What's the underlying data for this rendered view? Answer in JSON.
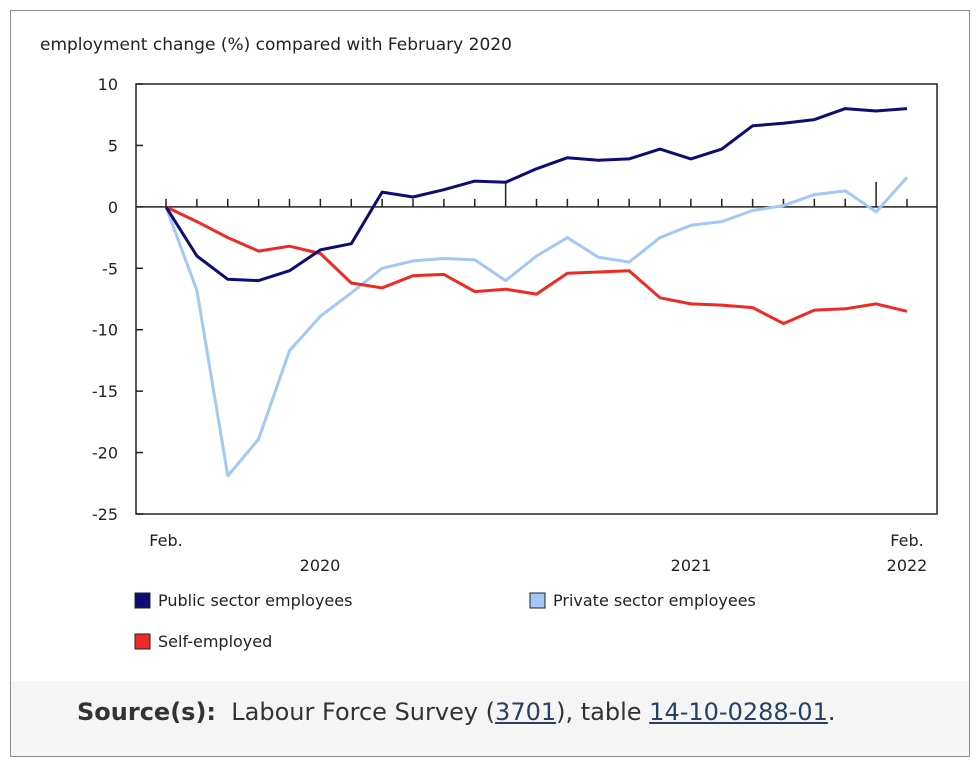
{
  "chart_data": {
    "type": "line",
    "title": "employment change (%) compared with February 2020",
    "x": [
      "2020-02",
      "2020-03",
      "2020-04",
      "2020-05",
      "2020-06",
      "2020-07",
      "2020-08",
      "2020-09",
      "2020-10",
      "2020-11",
      "2020-12",
      "2021-01",
      "2021-02",
      "2021-03",
      "2021-04",
      "2021-05",
      "2021-06",
      "2021-07",
      "2021-08",
      "2021-09",
      "2021-10",
      "2021-11",
      "2021-12",
      "2022-01",
      "2022-02"
    ],
    "x_tick_labels": {
      "start": "Feb.",
      "year1": "2020",
      "year2": "2021",
      "end": "Feb.",
      "end_year": "2022"
    },
    "ylim": [
      -25,
      10
    ],
    "yticks": [
      10,
      5,
      0,
      -5,
      -10,
      -15,
      -20,
      -25
    ],
    "grid": false,
    "legend_placement": "bottom",
    "series": [
      {
        "name": "Public sector employees",
        "color": "#0d0d73",
        "values": [
          0,
          -4.0,
          -5.9,
          -6.0,
          -5.2,
          -3.5,
          -3.0,
          1.2,
          0.8,
          1.4,
          2.1,
          2.0,
          3.1,
          4.0,
          3.8,
          3.9,
          4.7,
          3.9,
          4.7,
          6.6,
          6.8,
          7.1,
          8.0,
          7.8,
          8.0
        ]
      },
      {
        "name": "Private sector employees",
        "color": "#a3c8f5",
        "values": [
          0,
          -6.8,
          -21.9,
          -18.9,
          -11.7,
          -8.9,
          -7.0,
          -5.0,
          -4.4,
          -4.2,
          -4.3,
          -6.0,
          -4.0,
          -2.5,
          -4.1,
          -4.5,
          -2.5,
          -1.5,
          -1.2,
          -0.3,
          0.1,
          1.0,
          1.3,
          -0.4,
          2.4
        ]
      },
      {
        "name": "Self-employed",
        "color": "#ee2a24",
        "values": [
          0,
          -1.2,
          -2.5,
          -3.6,
          -3.2,
          -3.8,
          -6.2,
          -6.6,
          -5.6,
          -5.5,
          -6.9,
          -6.7,
          -7.1,
          -5.4,
          -5.3,
          -5.2,
          -7.4,
          -7.9,
          -8.0,
          -8.2,
          -9.5,
          -8.4,
          -8.3,
          -7.9,
          -8.5
        ]
      }
    ]
  },
  "source": {
    "label": "Source(s):",
    "text1": "Labour Force Survey (",
    "link1": "3701",
    "text2": "), table ",
    "link2": "14-10-0288-01",
    "text3": "."
  }
}
